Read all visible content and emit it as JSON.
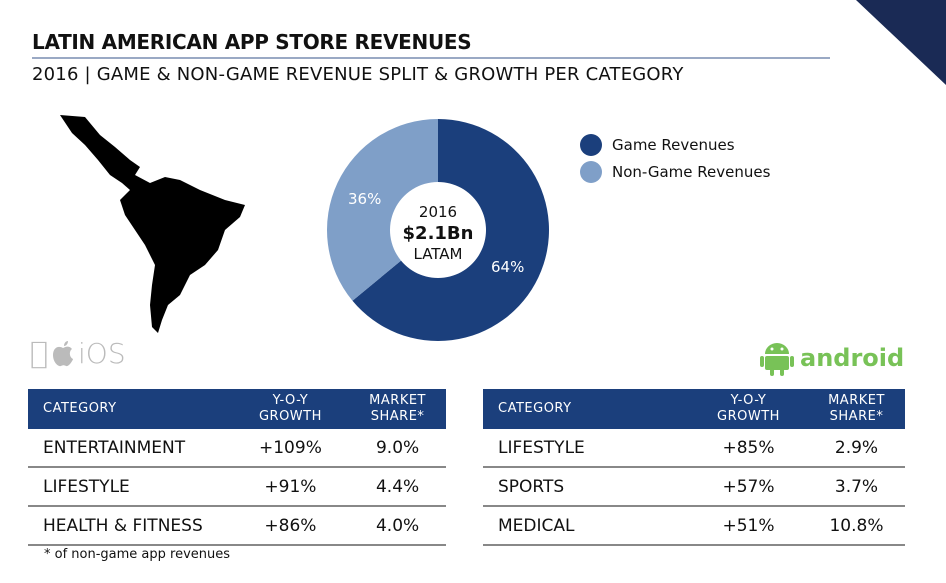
{
  "header": {
    "title": "LATIN AMERICAN APP STORE REVENUES",
    "subtitle": "2016 | GAME & NON-GAME REVENUE SPLIT & GROWTH PER CATEGORY"
  },
  "chart_data": {
    "type": "pie",
    "style": "donut",
    "center_text": {
      "year": "2016",
      "total": "$2.1Bn",
      "region": "LATAM"
    },
    "slices": [
      {
        "name": "Game Revenues",
        "value": 64,
        "label": "64%",
        "color": "#1b3f7c"
      },
      {
        "name": "Non-Game Revenues",
        "value": 36,
        "label": "36%",
        "color": "#7f9fc8"
      }
    ],
    "legend_position": "right"
  },
  "ios": {
    "label": "iOS",
    "headers": [
      "CATEGORY",
      "Y-O-Y GROWTH",
      "MARKET SHARE*"
    ],
    "rows": [
      [
        "ENTERTAINMENT",
        "+109%",
        "9.0%"
      ],
      [
        "LIFESTYLE",
        "+91%",
        "4.4%"
      ],
      [
        "HEALTH & FITNESS",
        "+86%",
        "4.0%"
      ]
    ]
  },
  "android": {
    "label": "android",
    "headers": [
      "CATEGORY",
      "Y-O-Y GROWTH",
      "MARKET SHARE*"
    ],
    "rows": [
      [
        "LIFESTYLE",
        "+85%",
        "2.9%"
      ],
      [
        "SPORTS",
        "+57%",
        "3.7%"
      ],
      [
        "MEDICAL",
        "+51%",
        "10.8%"
      ]
    ]
  },
  "footnote": "* of non-game app revenues"
}
